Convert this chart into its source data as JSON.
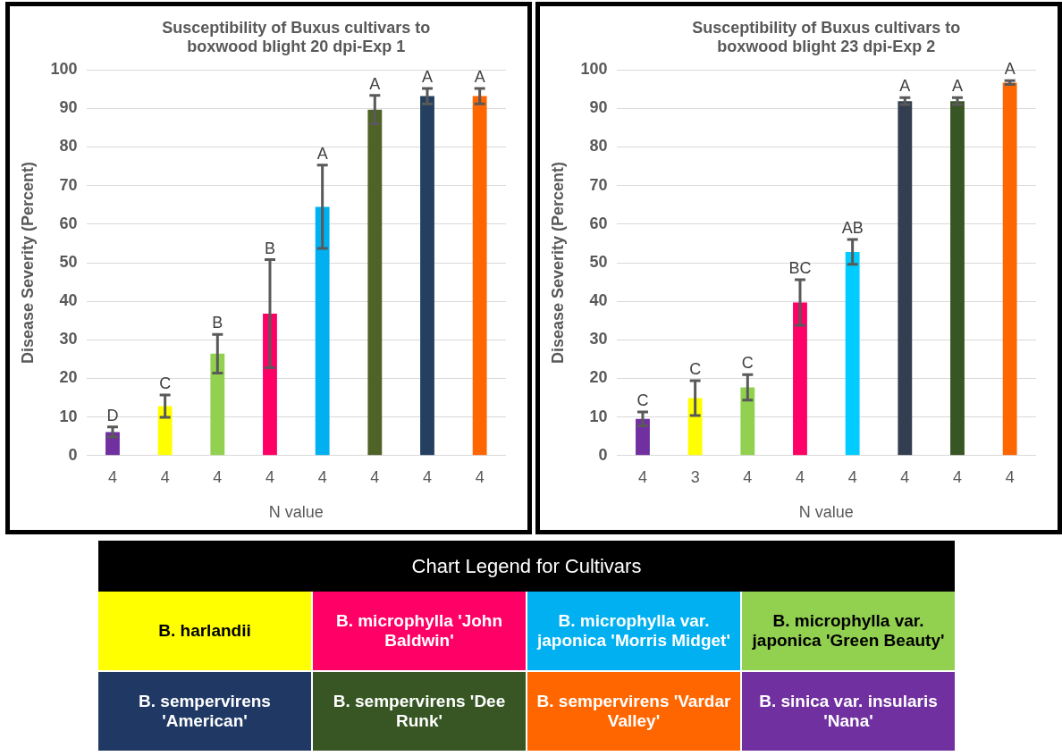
{
  "chart_data": [
    {
      "type": "bar",
      "title": "Susceptibility of Buxus cultivars to boxwood blight 20 dpi-Exp 1",
      "xlabel": "N value",
      "ylabel": "Disease Severity (Percent)",
      "categories": [
        "4",
        "4",
        "4",
        "4",
        "4",
        "4",
        "4",
        "4"
      ],
      "values": [
        6.1,
        12.8,
        26.4,
        36.8,
        64.5,
        89.7,
        93.2,
        93.2
      ],
      "errors": [
        1.3,
        2.9,
        5,
        14,
        10.8,
        3.7,
        2,
        2
      ],
      "annotations": [
        "D",
        "C",
        "B",
        "B",
        "A",
        "A",
        "A",
        "A"
      ],
      "colors": [
        "#7030a0",
        "#ffff00",
        "#92d050",
        "#ff0066",
        "#00b0f0",
        "#4f6228",
        "#243f60",
        "#ff6600"
      ],
      "ylim": [
        0,
        100
      ],
      "yticks": [
        0,
        10,
        20,
        30,
        40,
        50,
        60,
        70,
        80,
        90,
        100
      ],
      "grid": "y"
    },
    {
      "type": "bar",
      "title": "Susceptibility of Buxus cultivars to boxwood blight 23 dpi-Exp 2",
      "xlabel": "N value",
      "ylabel": "Disease Severity (Percent)",
      "categories": [
        "4",
        "3",
        "4",
        "4",
        "4",
        "4",
        "4",
        "4"
      ],
      "values": [
        9.5,
        14.9,
        17.7,
        39.7,
        52.8,
        91.9,
        91.9,
        96.7
      ],
      "errors": [
        1.8,
        4.5,
        3.3,
        5.9,
        3.2,
        0.9,
        0.9,
        0.5
      ],
      "annotations": [
        "C",
        "C",
        "C",
        "BC",
        "AB",
        "A",
        "A",
        "A"
      ],
      "colors": [
        "#7030a0",
        "#ffff00",
        "#92d050",
        "#ff0066",
        "#00ccff",
        "#333f50",
        "#375623",
        "#ff6600"
      ],
      "ylim": [
        0,
        100
      ],
      "yticks": [
        0,
        10,
        20,
        30,
        40,
        50,
        60,
        70,
        80,
        90,
        100
      ],
      "grid": "y"
    },
    {
      "type": "other",
      "title": "Chart Legend for Cultivars",
      "categories": [
        "B. harlandii",
        "B. microphylla 'John Baldwin'",
        "B. microphylla var. japonica 'Morris Midget'",
        "B. microphylla var. japonica 'Green Beauty'",
        "B. sempervirens 'American'",
        "B. sempervirens 'Dee Runk'",
        "B. sempervirens 'Vardar Valley'",
        "B. sinica var. insularis 'Nana'"
      ],
      "colors": [
        "#ffff00",
        "#ff0066",
        "#00b0f0",
        "#92d050",
        "#1f3864",
        "#375623",
        "#ff6600",
        "#7030a0"
      ]
    }
  ]
}
